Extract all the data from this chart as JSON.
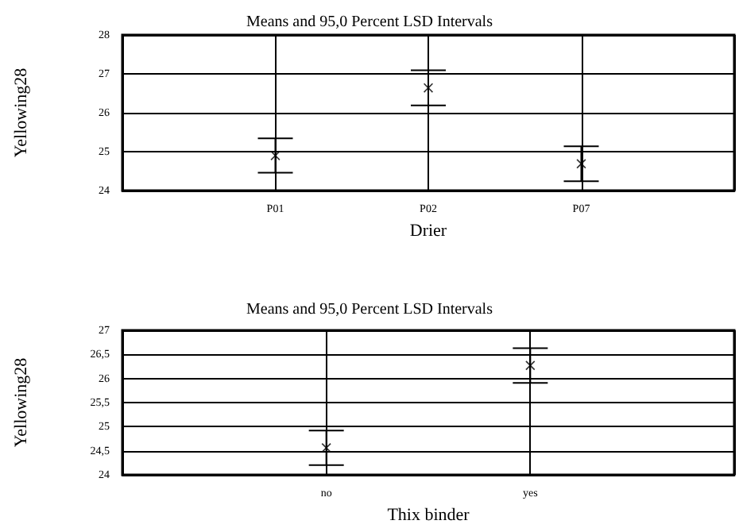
{
  "chart_data": [
    {
      "type": "scatter",
      "title": "Means and 95,0 Percent LSD Intervals",
      "xlabel": "Drier",
      "ylabel": "Yellowing28",
      "categories": [
        "P01",
        "P02",
        "P07"
      ],
      "values": [
        24.9,
        26.64,
        24.69
      ],
      "errors": [
        0.44,
        0.45,
        0.45
      ],
      "ylim": [
        24,
        28
      ],
      "yticks": [
        24,
        25,
        26,
        27,
        28
      ],
      "grid": true,
      "marker": "cross",
      "color": "#000000"
    },
    {
      "type": "scatter",
      "title": "Means and 95,0 Percent LSD Intervals",
      "xlabel": "Thix binder",
      "ylabel": "Yellowing28",
      "categories": [
        "no",
        "yes"
      ],
      "values": [
        24.56,
        26.27
      ],
      "errors": [
        0.36,
        0.36
      ],
      "ylim": [
        24,
        27
      ],
      "yticks": [
        24,
        {
          "value": 24.5,
          "label": "24,5"
        },
        25,
        {
          "value": 25.5,
          "label": "25,5"
        },
        26,
        {
          "value": 26.5,
          "label": "26,5"
        },
        27
      ],
      "grid": true,
      "marker": "cross",
      "color": "#000000"
    }
  ]
}
